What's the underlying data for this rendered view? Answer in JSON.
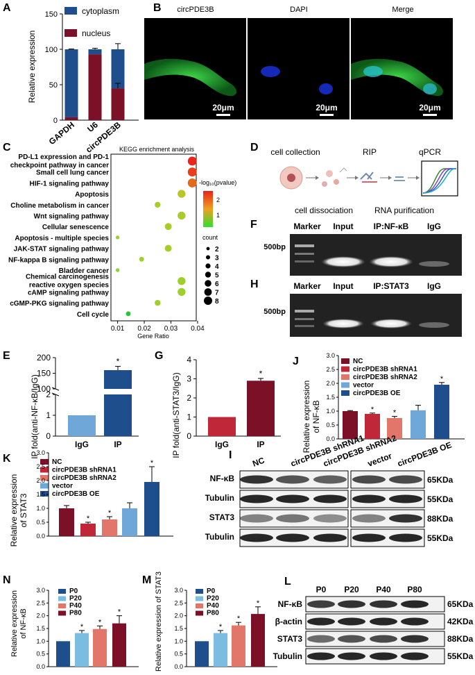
{
  "colors": {
    "navy": "#1f4e8c",
    "maroon": "#7b1026",
    "red": "#c0283a",
    "salmon": "#e2766b",
    "lightblue": "#6fa8d8",
    "skyblue": "#7bbde0",
    "green": "#2fbf3a"
  },
  "panelA": {
    "label": "A",
    "ylabel": "Relative expression",
    "legend": [
      "cytoplasm",
      "nucleus"
    ],
    "chart_data": {
      "type": "bar",
      "categories": [
        "GAPDH",
        "U6",
        "circPDE3B"
      ],
      "series": [
        {
          "name": "cytoplasm",
          "values": [
            96,
            7,
            55
          ]
        },
        {
          "name": "nucleus",
          "values": [
            4,
            93,
            45
          ]
        }
      ],
      "ylim": [
        0,
        150
      ],
      "yticks": [
        "0",
        "50",
        "100",
        "150"
      ]
    }
  },
  "panelB": {
    "label": "B",
    "titles": [
      "circPDE3B",
      "DAPI",
      "Merge"
    ],
    "scale": "20μm"
  },
  "panelC": {
    "label": "C",
    "title": "KEGG enrichment analysis",
    "xlabel": "Gene Ratio",
    "xticks": [
      "0.01",
      "0.02",
      "0.03",
      "0.04"
    ],
    "legend_title": "-log₁₀(pvalue)",
    "color_ticks": [
      "2",
      "1"
    ],
    "count_title": "count",
    "count_values": [
      "2",
      "3",
      "4",
      "5",
      "6",
      "7",
      "8"
    ],
    "pathways": [
      {
        "label1": "PD-L1 expression and PD-1",
        "label2": "checkpoint pathway in cancer",
        "x": 0.038,
        "count": 7,
        "color": "#e8261b"
      },
      {
        "label1": "Small cell lung cancer",
        "label2": "",
        "x": 0.038,
        "count": 7,
        "color": "#e93e1a"
      },
      {
        "label1": "HIF-1 signaling pathway",
        "label2": "",
        "x": 0.038,
        "count": 7,
        "color": "#e36a1c"
      },
      {
        "label1": "Apoptosis",
        "label2": "",
        "x": 0.034,
        "count": 6,
        "color": "#b9c62a"
      },
      {
        "label1": "Choline metabolism in cancer",
        "label2": "",
        "x": 0.025,
        "count": 4,
        "color": "#a9cc2b"
      },
      {
        "label1": "Wnt signaling pathway",
        "label2": "",
        "x": 0.034,
        "count": 6,
        "color": "#a9cc2b"
      },
      {
        "label1": "Cellular senescence",
        "label2": "",
        "x": 0.029,
        "count": 5,
        "color": "#a9cc2b"
      },
      {
        "label1": "Apoptosis - multiple species",
        "label2": "",
        "x": 0.01,
        "count": 2,
        "color": "#9bd12c"
      },
      {
        "label1": "JAK-STAT signaling pathway",
        "label2": "",
        "x": 0.029,
        "count": 5,
        "color": "#a6ce2b"
      },
      {
        "label1": "NF-kappa B signaling pathway",
        "label2": "",
        "x": 0.019,
        "count": 3,
        "color": "#9ed02c"
      },
      {
        "label1": "Bladder cancer",
        "label2": "",
        "x": 0.01,
        "count": 2,
        "color": "#8fd12d"
      },
      {
        "label1": "Chemical carcinogenesis",
        "label2": "reactive oxygen species",
        "x": 0.034,
        "count": 6,
        "color": "#a0cf2c"
      },
      {
        "label1": "cAMP signaling pathway",
        "label2": "",
        "x": 0.034,
        "count": 6,
        "color": "#9ed02c"
      },
      {
        "label1": "cGMP-PKG signaling pathway",
        "label2": "",
        "x": 0.025,
        "count": 4,
        "color": "#9ed02c"
      },
      {
        "label1": "Cell cycle",
        "label2": "",
        "x": 0.014,
        "count": 3,
        "color": "#2ec33a"
      }
    ]
  },
  "panelD": {
    "label": "D",
    "top": [
      "cell collection",
      "RIP",
      "qPCR"
    ],
    "bottom": [
      "cell dissociation",
      "RNA purification"
    ]
  },
  "panelF": {
    "label": "F",
    "lanes": [
      "Marker",
      "Input",
      "IP:NF-κB",
      "IgG"
    ],
    "marker": "500bp"
  },
  "panelH": {
    "label": "H",
    "lanes": [
      "Marker",
      "Input",
      "IP:STAT3",
      "IgG"
    ],
    "marker": "500bp"
  },
  "panelE": {
    "label": "E",
    "ylabel": "IP fold(anti-NF-κB/IgG)",
    "chart_data": {
      "type": "bar",
      "categories": [
        "IgG",
        "IP"
      ],
      "values": [
        1,
        160
      ],
      "yticks": [
        "0",
        "1",
        "2",
        "100",
        "150",
        "200"
      ],
      "sig": "*"
    }
  },
  "panelG": {
    "label": "G",
    "ylabel": "IP fold(anti-STAT3/IgG)",
    "chart_data": {
      "type": "bar",
      "categories": [
        "IgG",
        "IP"
      ],
      "values": [
        1.0,
        2.9
      ],
      "ylim": [
        0,
        4
      ],
      "yticks": [
        "0",
        "1",
        "2",
        "3",
        "4"
      ],
      "sig": "*"
    }
  },
  "panelJ": {
    "label": "J",
    "ylabel1": "Relative expression",
    "ylabel2": "of NF-κB",
    "legend": [
      "NC",
      "circPDE3B shRNA1",
      "circPDE3B shRNA2",
      "vector",
      "circPDE3B OE"
    ],
    "chart_data": {
      "type": "bar",
      "categories": [
        "NC",
        "circPDE3B shRNA1",
        "circPDE3B shRNA2",
        "vector",
        "circPDE3B OE"
      ],
      "values": [
        1.0,
        0.9,
        0.75,
        1.03,
        1.95
      ],
      "errors": [
        0.02,
        0.03,
        0.06,
        0.18,
        0.08
      ],
      "ylim": [
        0,
        3.0
      ],
      "yticks": [
        "0.0",
        "0.5",
        "1.0",
        "1.5",
        "2.0",
        "2.5",
        "3.0"
      ],
      "sig": [
        "",
        "*",
        "*",
        "",
        "*"
      ]
    }
  },
  "panelK": {
    "label": "K",
    "ylabel1": "Relative expression",
    "ylabel2": "of STAT3",
    "legend": [
      "NC",
      "circPDE3B shRNA1",
      "circPDE3B shRNA2",
      "vector",
      "circPDE3B OE"
    ],
    "chart_data": {
      "type": "bar",
      "categories": [
        "NC",
        "circPDE3B shRNA1",
        "circPDE3B shRNA2",
        "vector",
        "circPDE3B OE"
      ],
      "values": [
        1.0,
        0.45,
        0.6,
        1.0,
        1.95
      ],
      "errors": [
        0.1,
        0.05,
        0.1,
        0.2,
        0.55
      ],
      "ylim": [
        0,
        3.0
      ],
      "yticks": [
        "0.0",
        "0.5",
        "1.0",
        "1.5",
        "2.0",
        "2.5",
        "3.0"
      ],
      "sig": [
        "",
        "*",
        "*",
        "",
        "*"
      ]
    }
  },
  "panelI": {
    "label": "I",
    "lanes": [
      "NC",
      "circPDE3B shRNA1",
      "circPDE3B shRNA2",
      "vector",
      "circPDE3B OE"
    ],
    "rows": [
      {
        "name": "NF-κB",
        "size": "65KDa"
      },
      {
        "name": "Tubulin",
        "size": "55KDa"
      },
      {
        "name": "STAT3",
        "size": "88KDa"
      },
      {
        "name": "Tubulin",
        "size": "55KDa"
      }
    ]
  },
  "panelN": {
    "label": "N",
    "ylabel1": "Relative expression",
    "ylabel2": "of NF-κB",
    "legend": [
      "P0",
      "P20",
      "P40",
      "P80"
    ],
    "chart_data": {
      "type": "bar",
      "categories": [
        "P0",
        "P20",
        "P40",
        "P80"
      ],
      "values": [
        1.0,
        1.32,
        1.48,
        1.7
      ],
      "errors": [
        0,
        0.1,
        0.12,
        0.3
      ],
      "ylim": [
        0,
        3.0
      ],
      "yticks": [
        "0.0",
        "0.5",
        "1.0",
        "1.5",
        "2.0",
        "2.5",
        "3.0"
      ],
      "sig": [
        "",
        "*",
        "*",
        "*"
      ]
    }
  },
  "panelM": {
    "label": "M",
    "ylabel": "Relative expression of STAT3",
    "legend": [
      "P0",
      "P20",
      "P40",
      "P80"
    ],
    "chart_data": {
      "type": "bar",
      "categories": [
        "P0",
        "P20",
        "P40",
        "P80"
      ],
      "values": [
        1.0,
        1.32,
        1.62,
        2.07
      ],
      "errors": [
        0,
        0.1,
        0.12,
        0.28
      ],
      "ylim": [
        0,
        3.0
      ],
      "yticks": [
        "0.0",
        "0.5",
        "1.0",
        "1.5",
        "2.0",
        "2.5",
        "3.0"
      ],
      "sig": [
        "",
        "*",
        "*",
        "*"
      ]
    }
  },
  "panelL": {
    "label": "L",
    "lanes": [
      "P0",
      "P20",
      "P40",
      "P80"
    ],
    "rows": [
      {
        "name": "NF-κB",
        "size": "65KDa"
      },
      {
        "name": "β-actin",
        "size": "42KDa"
      },
      {
        "name": "STAT3",
        "size": "88KDa"
      },
      {
        "name": "Tubulin",
        "size": "55KDa"
      }
    ]
  }
}
